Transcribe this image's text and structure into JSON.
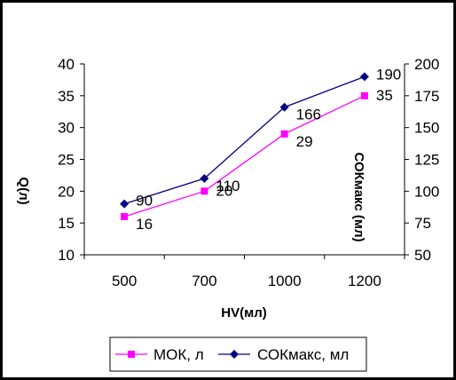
{
  "chart_data": {
    "type": "line",
    "categories": [
      "500",
      "700",
      "1000",
      "1200"
    ],
    "xlabel": "HV(мл)",
    "ylabel_left": "Q(л)",
    "ylabel_right": "СОКмакс (мл)",
    "ylim_left": [
      10,
      40
    ],
    "yticks_left": [
      "10",
      "15",
      "20",
      "25",
      "30",
      "35",
      "40"
    ],
    "ylim_right": [
      50,
      200
    ],
    "yticks_right": [
      "50",
      "75",
      "100",
      "125",
      "150",
      "175",
      "200"
    ],
    "grid": false,
    "legend_position": "bottom",
    "series": [
      {
        "name": "МОК, л",
        "axis": "left",
        "values": [
          16,
          20,
          29,
          35
        ],
        "labels": [
          "16",
          "20",
          "29",
          "35"
        ],
        "color": "#ff00ff",
        "marker": "square"
      },
      {
        "name": "СОКмакс, мл",
        "axis": "right",
        "values": [
          90,
          110,
          166,
          190
        ],
        "labels": [
          "90",
          "110",
          "166",
          "190"
        ],
        "color": "#000080",
        "marker": "diamond"
      }
    ]
  }
}
